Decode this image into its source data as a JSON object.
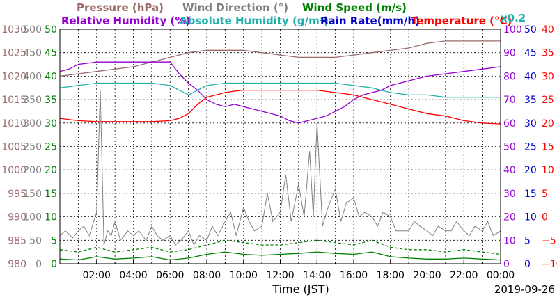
{
  "chart_data": {
    "type": "line",
    "date": "2019-09-26",
    "xlabel": "Time (JST)",
    "x_ticks": [
      "02:00",
      "04:00",
      "06:00",
      "08:00",
      "10:00",
      "12:00",
      "14:00",
      "16:00",
      "18:00",
      "20:00",
      "22:00",
      "00:00"
    ],
    "xlim_hours": [
      0,
      24
    ],
    "grid": true,
    "axes": {
      "pressure": {
        "label": "Pressure (hPa)",
        "color": "#9a6b6b",
        "ylim": [
          980,
          1030
        ],
        "ticks": [
          980,
          985,
          990,
          995,
          1000,
          1005,
          1010,
          1015,
          1020,
          1025,
          1030
        ]
      },
      "wind_direction": {
        "label": "Wind Direction (°)",
        "color": "#808080",
        "ylim": [
          0,
          500
        ],
        "ticks": [
          0,
          50,
          100,
          150,
          200,
          250,
          300,
          350,
          400,
          450,
          500
        ]
      },
      "wind_speed": {
        "label": "Wind Speed (m/s)",
        "color": "#008000",
        "ylim": [
          0,
          50
        ],
        "ticks": [
          0,
          5,
          10,
          15,
          20,
          25,
          30,
          35,
          40,
          45,
          50
        ]
      },
      "relative_humidity": {
        "label": "Relative Humidity (%)",
        "color": "#9400d3",
        "ylim": [
          0,
          100
        ],
        "ticks": [
          0,
          10,
          20,
          30,
          40,
          50,
          60,
          70,
          80,
          90,
          100
        ]
      },
      "absolute_humidity": {
        "label": "Absolute Humidity (g/m³)",
        "color": "#20b2aa",
        "scale_note": "x0.2"
      },
      "rain_rate": {
        "label": "Rain Rate(mm/h)",
        "color": "#0000cd",
        "ylim": [
          0,
          50
        ],
        "ticks": [
          0,
          5,
          10,
          15,
          20,
          25,
          30,
          35,
          40,
          45,
          50
        ]
      },
      "temperature": {
        "label": "Temperature (°C)",
        "color": "#ff0000",
        "ylim": [
          -10,
          40
        ],
        "ticks": [
          -10,
          -5,
          0,
          5,
          10,
          15,
          20,
          25,
          30,
          35,
          40
        ]
      }
    },
    "series": [
      {
        "name": "Pressure (hPa)",
        "axis": "pressure",
        "color": "#9a6b6b",
        "x": [
          0,
          2,
          4,
          5,
          6,
          7,
          8,
          9,
          10,
          11,
          12,
          13,
          14,
          15,
          16,
          17,
          18,
          19,
          20,
          21,
          22,
          24
        ],
        "y": [
          1020,
          1021,
          1022,
          1023,
          1024,
          1025,
          1025.5,
          1025.5,
          1025.5,
          1025,
          1024.5,
          1024,
          1024,
          1024,
          1024.5,
          1025,
          1025.5,
          1026,
          1027,
          1027.5,
          1027.5,
          1027.5
        ]
      },
      {
        "name": "Relative Humidity (%)",
        "axis": "relative_humidity",
        "color": "#9400d3",
        "x": [
          0,
          0.5,
          1,
          2,
          4,
          5,
          6,
          6.5,
          7,
          7.5,
          8,
          8.5,
          9,
          9.5,
          10,
          10.5,
          11,
          11.5,
          12,
          12.5,
          13,
          13.5,
          14,
          14.5,
          15,
          15.5,
          16,
          16.5,
          17,
          17.5,
          18,
          18.5,
          19,
          20,
          21,
          22,
          23,
          24
        ],
        "y": [
          82,
          83,
          85,
          86,
          86,
          86,
          86,
          81,
          77,
          74,
          70,
          68,
          67,
          68,
          67,
          66,
          65,
          64,
          63,
          61,
          60,
          61,
          62,
          63,
          65,
          67,
          70,
          72,
          73,
          74,
          76,
          77,
          78,
          80,
          81,
          82,
          83,
          84
        ]
      },
      {
        "name": "Absolute Humidity x0.2",
        "axis": "relative_humidity",
        "color": "#20b2aa",
        "x": [
          0,
          1,
          2,
          3,
          4,
          5,
          6,
          6.5,
          7,
          7.5,
          8,
          9,
          10,
          11,
          12,
          13,
          14,
          15,
          16,
          17,
          18,
          19,
          20,
          21,
          22,
          23,
          24
        ],
        "y": [
          75,
          76,
          77,
          77,
          77,
          77,
          76,
          74,
          72,
          74,
          76,
          77,
          77,
          77,
          77,
          77,
          77,
          77,
          76,
          75,
          73,
          72,
          72,
          71,
          71,
          71,
          71
        ]
      },
      {
        "name": "Temperature (°C)",
        "axis": "temperature",
        "color": "#ff0000",
        "x": [
          0,
          1,
          2,
          3,
          4,
          5,
          6,
          6.5,
          7,
          7.5,
          8,
          8.5,
          9,
          9.5,
          10,
          11,
          12,
          13,
          14,
          15,
          16,
          17,
          18,
          19,
          20,
          21,
          22,
          23,
          24
        ],
        "y": [
          21,
          20.5,
          20.3,
          20.3,
          20.3,
          20.3,
          20.5,
          21,
          22,
          24,
          25.5,
          26,
          26.5,
          26.8,
          27,
          27,
          27,
          27,
          27,
          26.5,
          26,
          25,
          24,
          23,
          22,
          21.5,
          20.5,
          20,
          19.8
        ]
      },
      {
        "name": "Wind Direction (°)",
        "axis": "wind_direction",
        "color": "#808080",
        "x": [
          0,
          0.3,
          0.7,
          1,
          1.3,
          1.6,
          2,
          2.2,
          2.4,
          2.6,
          2.8,
          3,
          3.3,
          3.7,
          4,
          4.3,
          4.7,
          5,
          5.3,
          5.6,
          6,
          6.3,
          6.6,
          7,
          7.3,
          7.6,
          8,
          8.3,
          8.6,
          9,
          9.3,
          9.6,
          10,
          10.3,
          10.6,
          11,
          11.3,
          11.6,
          12,
          12.3,
          12.6,
          13,
          13.3,
          13.6,
          13.8,
          14,
          14.3,
          14.6,
          15,
          15.3,
          15.6,
          16,
          16.3,
          16.6,
          17,
          17.3,
          17.6,
          18,
          18.3,
          18.6,
          19,
          19.3,
          19.6,
          20,
          20.3,
          20.6,
          21,
          21.3,
          21.6,
          22,
          22.3,
          22.6,
          23,
          23.3,
          23.6,
          24
        ],
        "y": [
          60,
          70,
          55,
          70,
          80,
          60,
          110,
          370,
          40,
          70,
          60,
          90,
          50,
          70,
          60,
          70,
          50,
          80,
          60,
          50,
          60,
          40,
          50,
          70,
          40,
          60,
          50,
          80,
          60,
          90,
          110,
          60,
          120,
          90,
          70,
          80,
          150,
          90,
          110,
          190,
          90,
          170,
          100,
          240,
          100,
          300,
          80,
          120,
          160,
          90,
          130,
          140,
          100,
          110,
          100,
          80,
          110,
          100,
          70,
          70,
          70,
          90,
          80,
          70,
          60,
          80,
          70,
          70,
          90,
          70,
          60,
          80,
          70,
          90,
          60,
          70
        ]
      },
      {
        "name": "Wind Speed max (m/s)",
        "axis": "wind_speed",
        "color": "#008000",
        "dashed": true,
        "x": [
          0,
          1,
          2,
          3,
          4,
          5,
          6,
          7,
          8,
          9,
          10,
          11,
          12,
          13,
          14,
          15,
          16,
          17,
          18,
          19,
          20,
          21,
          22,
          23,
          24
        ],
        "y": [
          3,
          2.5,
          3.5,
          2.5,
          3,
          3.5,
          2.5,
          3,
          4,
          5,
          4.5,
          4,
          4,
          4.5,
          5,
          4.5,
          4,
          5,
          3.5,
          3,
          3,
          2.5,
          3,
          2.5,
          2
        ]
      },
      {
        "name": "Wind Speed (m/s)",
        "axis": "wind_speed",
        "color": "#008000",
        "x": [
          0,
          1,
          2,
          3,
          4,
          5,
          6,
          7,
          8,
          9,
          10,
          11,
          12,
          13,
          14,
          15,
          16,
          17,
          18,
          19,
          20,
          21,
          22,
          23,
          24
        ],
        "y": [
          1,
          0.8,
          1.5,
          1,
          1.2,
          1.5,
          0.8,
          1.2,
          2,
          2.5,
          2,
          1.8,
          2,
          2.2,
          2.5,
          2.2,
          2,
          2.5,
          1.5,
          1.2,
          1,
          1,
          1.2,
          1,
          0.8
        ]
      }
    ]
  }
}
